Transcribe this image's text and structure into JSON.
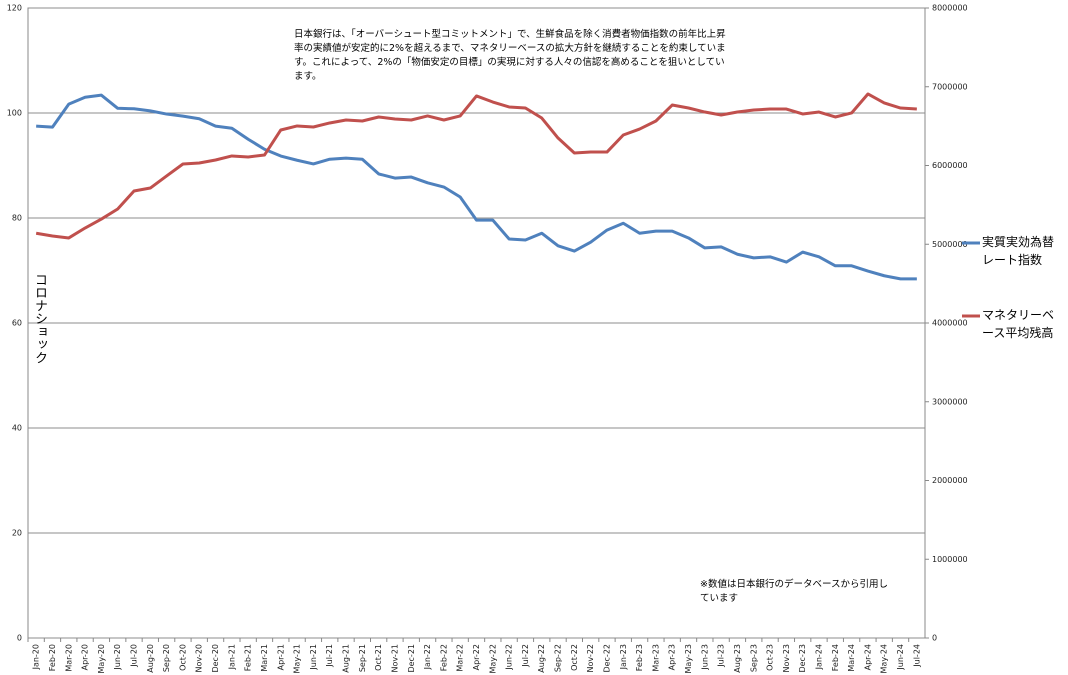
{
  "chart_data": {
    "type": "line",
    "categories": [
      "Jan-20",
      "Feb-20",
      "Mar-20",
      "Apr-20",
      "May-20",
      "Jun-20",
      "Jul-20",
      "Aug-20",
      "Sep-20",
      "Oct-20",
      "Nov-20",
      "Dec-20",
      "Jan-21",
      "Feb-21",
      "Mar-21",
      "Apr-21",
      "May-21",
      "Jun-21",
      "Jul-21",
      "Aug-21",
      "Sep-21",
      "Oct-21",
      "Nov-21",
      "Dec-21",
      "Jan-22",
      "Feb-22",
      "Mar-22",
      "Apr-22",
      "May-22",
      "Jun-22",
      "Jul-22",
      "Aug-22",
      "Sep-22",
      "Oct-22",
      "Nov-22",
      "Dec-22",
      "Jan-23",
      "Feb-23",
      "Mar-23",
      "Apr-23",
      "May-23",
      "Jun-23",
      "Jul-23",
      "Aug-23",
      "Sep-23",
      "Oct-23",
      "Nov-23",
      "Dec-23",
      "Jan-24",
      "Feb-24",
      "Mar-24",
      "Apr-24",
      "May-24",
      "Jun-24",
      "Jul-24"
    ],
    "series": [
      {
        "name": "実質実効為替レート指数",
        "color": "#4f81bd",
        "values": [
          97.5,
          97.3,
          101.7,
          103.0,
          103.4,
          100.9,
          100.8,
          100.4,
          99.8,
          99.4,
          98.9,
          97.5,
          97.1,
          95.0,
          93.1,
          91.8,
          91.0,
          90.3,
          91.2,
          91.4,
          91.2,
          88.4,
          87.6,
          87.8,
          86.7,
          85.9,
          84.0,
          79.6,
          79.6,
          76.0,
          75.8,
          77.1,
          74.7,
          73.7,
          75.4,
          77.7,
          79.0,
          77.1,
          77.5,
          77.5,
          76.2,
          74.3,
          74.5,
          73.1,
          72.4,
          72.6,
          71.6,
          73.5,
          72.6,
          70.9,
          70.9,
          69.9,
          69.0,
          68.4,
          68.4
        ]
      },
      {
        "name": "マネタリーベース平均残高",
        "color": "#c0504d",
        "axis": "y2",
        "values": [
          5140000,
          5105000,
          5080000,
          5206000,
          5320000,
          5448000,
          5676000,
          5714000,
          5867000,
          6019000,
          6032000,
          6070000,
          6121000,
          6108000,
          6133000,
          6451000,
          6502000,
          6489000,
          6540000,
          6578000,
          6565000,
          6616000,
          6590000,
          6578000,
          6629000,
          6578000,
          6629000,
          6883000,
          6806000,
          6743000,
          6730000,
          6603000,
          6349000,
          6159000,
          6171000,
          6171000,
          6387000,
          6463000,
          6565000,
          6768000,
          6730000,
          6679000,
          6641000,
          6679000,
          6705000,
          6717000,
          6717000,
          6654000,
          6679000,
          6616000,
          6667000,
          6908000,
          6794000,
          6730000,
          6717000
        ]
      }
    ],
    "ylim": [
      0,
      120
    ],
    "yticks": [
      0,
      20,
      40,
      60,
      80,
      100,
      120
    ],
    "y2lim": [
      0,
      8000000
    ],
    "y2ticks": [
      0,
      1000000,
      2000000,
      3000000,
      4000000,
      5000000,
      6000000,
      7000000,
      8000000
    ],
    "grid": true,
    "legend": "right",
    "annotations": [
      "日本銀行は、「オーバーシュート型コミットメント」で、生鮮食品を除く消費者物価指数の前年比上昇率の実績値が安定的に2%を超えるまで、マネタリーベースの拡大方針を継続することを約束しています。これによって、2%の「物価安定の目標」の実現に対する人々の信認を高めることを狙いとしています。",
      "コロナショック",
      "※数値は日本銀行のデータベースから引用しています"
    ]
  }
}
